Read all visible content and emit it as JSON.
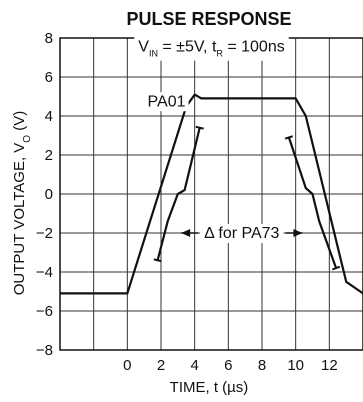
{
  "chart_data": {
    "type": "line",
    "title": "PULSE RESPONSE",
    "xlabel": "TIME, t (µs)",
    "ylabel": {
      "prefix": "OUTPUT VOLTAGE, V",
      "subscript": "O",
      "suffix": " (V)"
    },
    "xlim": [
      -4,
      14
    ],
    "ylim": [
      -8,
      8
    ],
    "x_ticks": [
      0,
      2,
      4,
      6,
      8,
      10,
      12
    ],
    "y_ticks": [
      -8,
      -6,
      -4,
      -2,
      0,
      2,
      4,
      6,
      8
    ],
    "grid": true,
    "legend": "none",
    "condition": {
      "parts": [
        {
          "text": "V",
          "sub": false
        },
        {
          "text": "IN",
          "sub": true
        },
        {
          "text": " = ±5V, t",
          "sub": false
        },
        {
          "text": "R",
          "sub": true
        },
        {
          "text": " = 100ns",
          "sub": false
        }
      ]
    },
    "series": [
      {
        "name": "PA01",
        "x": [
          -4,
          0,
          3.5,
          4,
          4.4,
          10,
          10.6,
          13,
          14
        ],
        "y": [
          -5.1,
          -5.1,
          4.5,
          5.1,
          4.9,
          4.9,
          4.0,
          -4.5,
          -5.1
        ]
      },
      {
        "name": "PA73",
        "segments": [
          {
            "x": [
              1.8,
              2.4,
              3.0,
              3.4,
              4.3
            ],
            "y": [
              -3.4,
              -1.4,
              0.0,
              0.2,
              3.4
            ]
          },
          {
            "x": [
              9.6,
              10.6,
              11.0,
              11.4,
              12.4
            ],
            "y": [
              2.9,
              0.3,
              0.0,
              -1.4,
              -3.8
            ]
          }
        ]
      }
    ],
    "annotations": {
      "pa01_label": "PA01",
      "pa73_label": "Δ for PA73"
    }
  }
}
